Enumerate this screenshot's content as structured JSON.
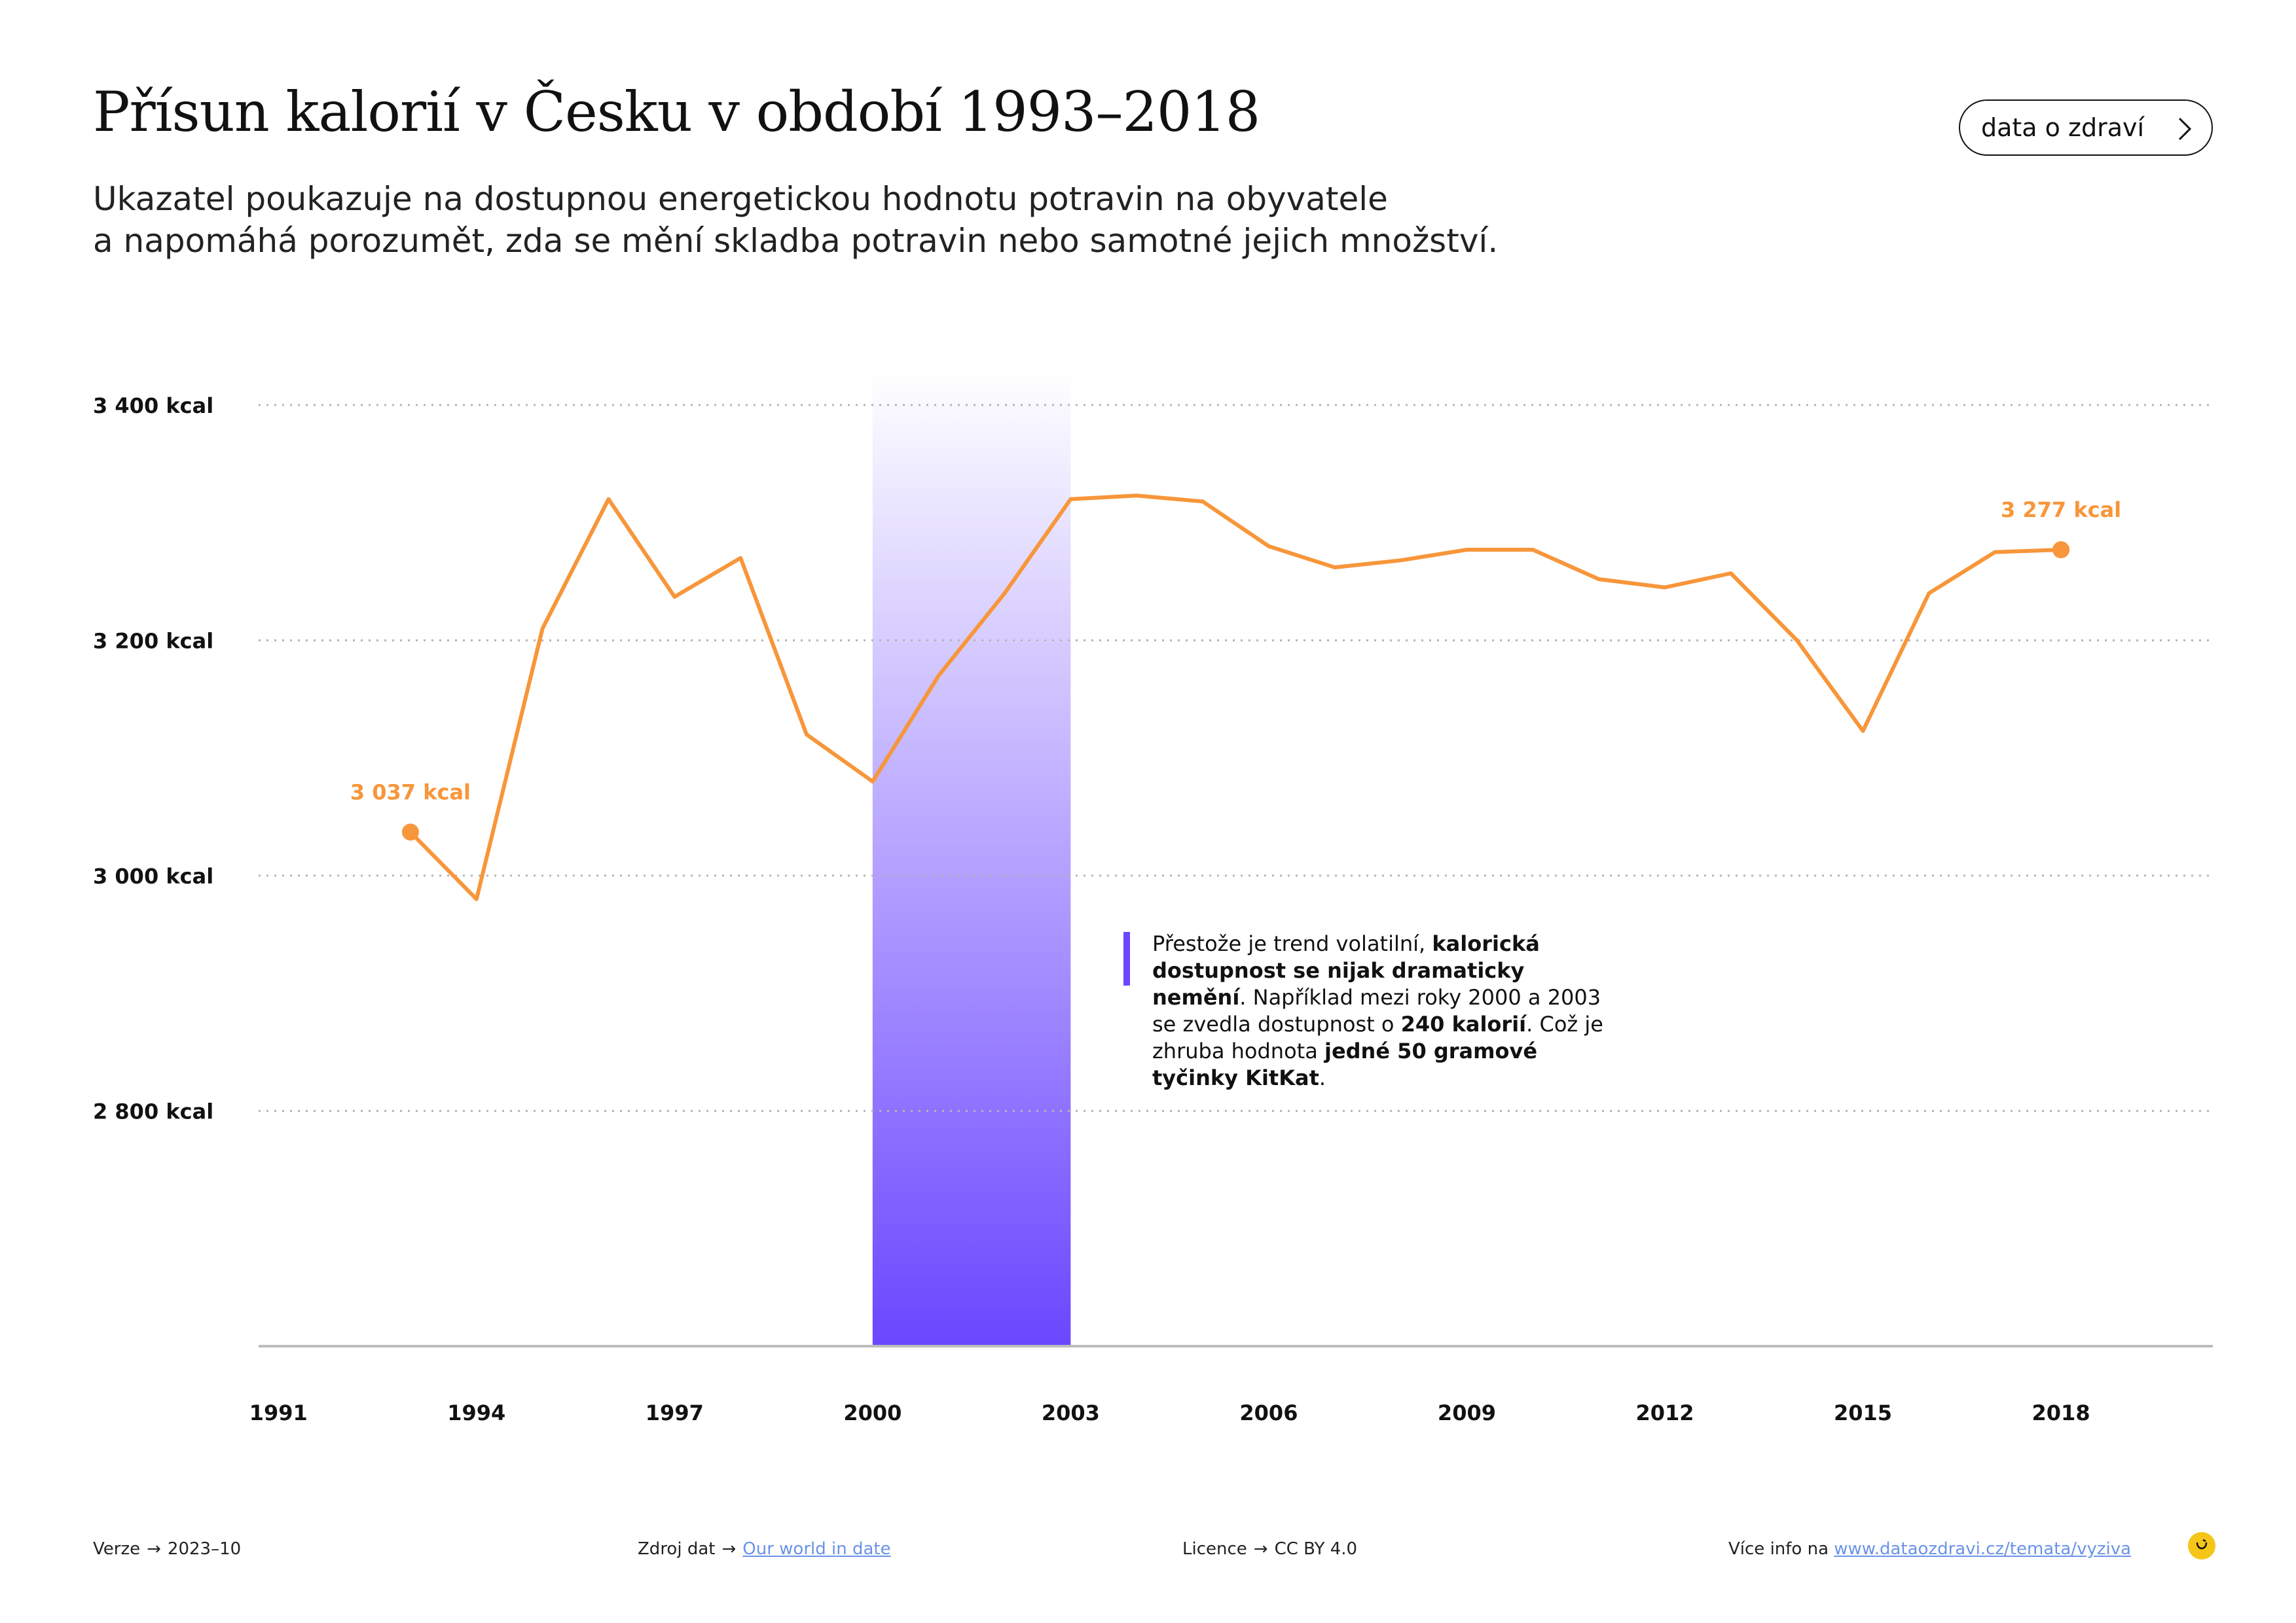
{
  "header": {
    "title": "Přísun kalorií v Česku v období 1993–2018",
    "subtitle_line1": "Ukazatel poukazuje na dostupnou energetickou hodnotu potravin na obyvatele",
    "subtitle_line2": "a napomáhá porozumět, zda se mění skladba potravin nebo samotné jejich množství.",
    "button_label": "data o zdraví",
    "button_icon": "chevron-right-icon"
  },
  "chart_data": {
    "type": "line",
    "x": [
      1993,
      1994,
      1995,
      1996,
      1997,
      1998,
      1999,
      2000,
      2001,
      2002,
      2003,
      2004,
      2005,
      2006,
      2007,
      2008,
      2009,
      2010,
      2011,
      2012,
      2013,
      2014,
      2015,
      2016,
      2017,
      2018
    ],
    "series": [
      {
        "name": "",
        "color": "#f7963a",
        "values": [
          3037,
          2980,
          3210,
          3320,
          3237,
          3270,
          3120,
          3080,
          3170,
          3240,
          3320,
          3323,
          3318,
          3280,
          3262,
          3268,
          3277,
          3277,
          3252,
          3245,
          3257,
          3200,
          3123,
          3240,
          3275,
          3277
        ]
      }
    ],
    "xlim": [
      1990.7,
      2020.3
    ],
    "ylim": [
      2600,
      3430
    ],
    "y_ticks": [
      3400,
      3200,
      3000,
      2800
    ],
    "y_tick_labels": [
      "3 400 kcal",
      "3 200 kcal",
      "3 000 kcal",
      "2 800 kcal"
    ],
    "x_ticks": [
      1991,
      1994,
      1997,
      2000,
      2003,
      2006,
      2009,
      2012,
      2015,
      2018
    ],
    "x_tick_labels": [
      "1991",
      "1994",
      "1997",
      "2000",
      "2003",
      "2006",
      "2009",
      "2012",
      "2015",
      "2018"
    ],
    "highlight_band": [
      2000,
      2003
    ],
    "highlight_color": "#6b46ff",
    "grid": true,
    "annotations": [
      {
        "x": 1993,
        "y": 3037,
        "label": "3 037 kcal"
      },
      {
        "x": 2018,
        "y": 3277,
        "label": "3 277 kcal"
      }
    ],
    "note": {
      "t1": "Přestože je trend volatilní, ",
      "b1": "kalorická dostupnost se nijak dramaticky nemění",
      "t2": ". Například mezi roky 2000 a 2003 se zvedla dostupnost o ",
      "b2": "240 kalorií",
      "t3": ". Což je zhruba hodnota ",
      "b3": "jedné 50 gramové tyčinky KitKat",
      "t4": "."
    }
  },
  "footer": {
    "version_label": "Verze",
    "version_value": "2023–10",
    "source_label": "Zdroj dat",
    "source_link": "Our world in date",
    "license_label": "Licence",
    "license_value": "CC BY 4.0",
    "more_label": "Více info na",
    "more_link": "www.dataozdravi.cz/temata/vyziva",
    "arrow": "→",
    "logo_icon": "brand-logo-icon"
  }
}
